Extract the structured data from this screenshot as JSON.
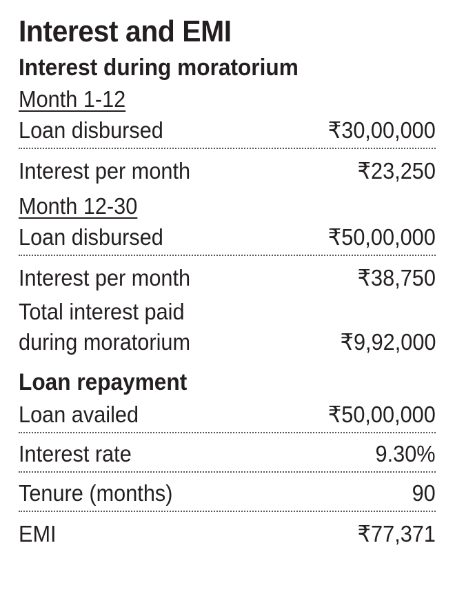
{
  "title": "Interest and EMI",
  "moratorium": {
    "heading": "Interest during moratorium",
    "period1": {
      "label": "Month 1-12",
      "rows": [
        {
          "label": "Loan disbursed",
          "value": "₹30,00,000"
        },
        {
          "label": "Interest per month",
          "value": "₹23,250"
        }
      ]
    },
    "period2": {
      "label": "Month 12-30",
      "rows": [
        {
          "label": "Loan disbursed",
          "value": "₹50,00,000"
        },
        {
          "label": "Interest per month",
          "value": "₹38,750"
        }
      ]
    },
    "total": {
      "label": "Total interest paid\nduring moratorium",
      "value": "₹9,92,000"
    }
  },
  "repayment": {
    "heading": "Loan repayment",
    "rows": [
      {
        "label": "Loan availed",
        "value": "₹50,00,000"
      },
      {
        "label": "Interest rate",
        "value": "9.30%"
      },
      {
        "label": "Tenure (months)",
        "value": "90"
      },
      {
        "label": "EMI",
        "value": "₹77,371"
      }
    ]
  }
}
